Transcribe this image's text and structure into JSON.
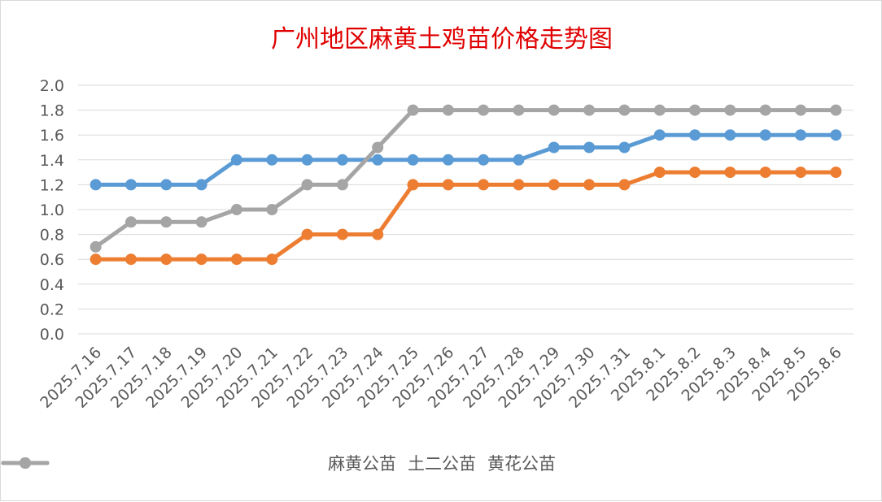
{
  "chart_data": {
    "type": "line",
    "title": "广州地区麻黄土鸡苗价格走势图",
    "title_color": "#e00000",
    "categories": [
      "2025.7.16",
      "2025.7.17",
      "2025.7.18",
      "2025.7.19",
      "2025.7.20",
      "2025.7.21",
      "2025.7.22",
      "2025.7.23",
      "2025.7.24",
      "2025.7.25",
      "2025.7.26",
      "2025.7.27",
      "2025.7.28",
      "2025.7.29",
      "2025.7.30",
      "2025.7.31",
      "2025.8.1",
      "2025.8.2",
      "2025.8.3",
      "2025.8.4",
      "2025.8.5",
      "2025.8.6"
    ],
    "ylim": [
      0,
      2.0
    ],
    "yticks": [
      "0.0",
      "0.2",
      "0.4",
      "0.6",
      "0.8",
      "1.0",
      "1.2",
      "1.4",
      "1.6",
      "1.8",
      "2.0"
    ],
    "grid": true,
    "legend_position": "bottom",
    "series": [
      {
        "name": "麻黄公苗",
        "color": "#5b9bd5",
        "values": [
          1.2,
          1.2,
          1.2,
          1.2,
          1.4,
          1.4,
          1.4,
          1.4,
          1.4,
          1.4,
          1.4,
          1.4,
          1.4,
          1.5,
          1.5,
          1.5,
          1.6,
          1.6,
          1.6,
          1.6,
          1.6,
          1.6
        ]
      },
      {
        "name": "土二公苗",
        "color": "#ed7d31",
        "values": [
          0.6,
          0.6,
          0.6,
          0.6,
          0.6,
          0.6,
          0.8,
          0.8,
          0.8,
          1.2,
          1.2,
          1.2,
          1.2,
          1.2,
          1.2,
          1.2,
          1.3,
          1.3,
          1.3,
          1.3,
          1.3,
          1.3
        ]
      },
      {
        "name": "黄花公苗",
        "color": "#a5a5a5",
        "values": [
          0.7,
          0.9,
          0.9,
          0.9,
          1.0,
          1.0,
          1.2,
          1.2,
          1.5,
          1.8,
          1.8,
          1.8,
          1.8,
          1.8,
          1.8,
          1.8,
          1.8,
          1.8,
          1.8,
          1.8,
          1.8,
          1.8
        ]
      }
    ]
  }
}
